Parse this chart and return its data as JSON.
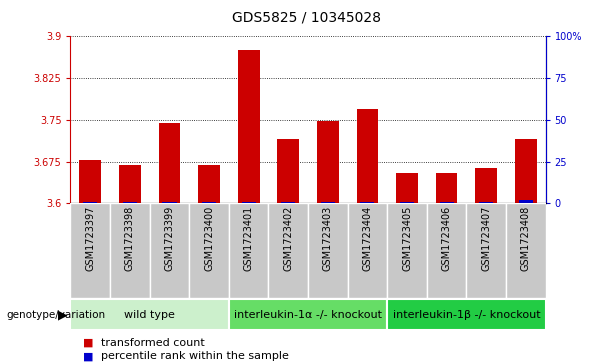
{
  "title": "GDS5825 / 10345028",
  "samples": [
    "GSM1723397",
    "GSM1723398",
    "GSM1723399",
    "GSM1723400",
    "GSM1723401",
    "GSM1723402",
    "GSM1723403",
    "GSM1723404",
    "GSM1723405",
    "GSM1723406",
    "GSM1723407",
    "GSM1723408"
  ],
  "red_values": [
    3.678,
    3.668,
    3.745,
    3.668,
    3.875,
    3.715,
    3.748,
    3.77,
    3.655,
    3.655,
    3.663,
    3.715
  ],
  "blue_values": [
    1,
    1,
    1,
    1,
    1,
    1,
    1,
    1,
    1,
    1,
    1,
    2
  ],
  "ymin": 3.6,
  "ymax": 3.9,
  "y2min": 0,
  "y2max": 100,
  "yticks": [
    3.6,
    3.675,
    3.75,
    3.825,
    3.9
  ],
  "y2ticks": [
    0,
    25,
    50,
    75,
    100
  ],
  "groups": [
    {
      "label": "wild type",
      "start": 0,
      "end": 3,
      "color": "#ccf0cc"
    },
    {
      "label": "interleukin-1α -/- knockout",
      "start": 4,
      "end": 7,
      "color": "#66dd66"
    },
    {
      "label": "interleukin-1β -/- knockout",
      "start": 8,
      "end": 11,
      "color": "#22cc44"
    }
  ],
  "bar_color_red": "#cc0000",
  "bar_color_blue": "#0000cc",
  "bar_width": 0.55,
  "plot_bg_color": "white",
  "sample_cell_color": "#c8c8c8",
  "legend_label_red": "transformed count",
  "legend_label_blue": "percentile rank within the sample",
  "genotype_label": "genotype/variation",
  "title_fontsize": 10,
  "tick_fontsize": 7,
  "group_label_fontsize": 8,
  "legend_fontsize": 8
}
